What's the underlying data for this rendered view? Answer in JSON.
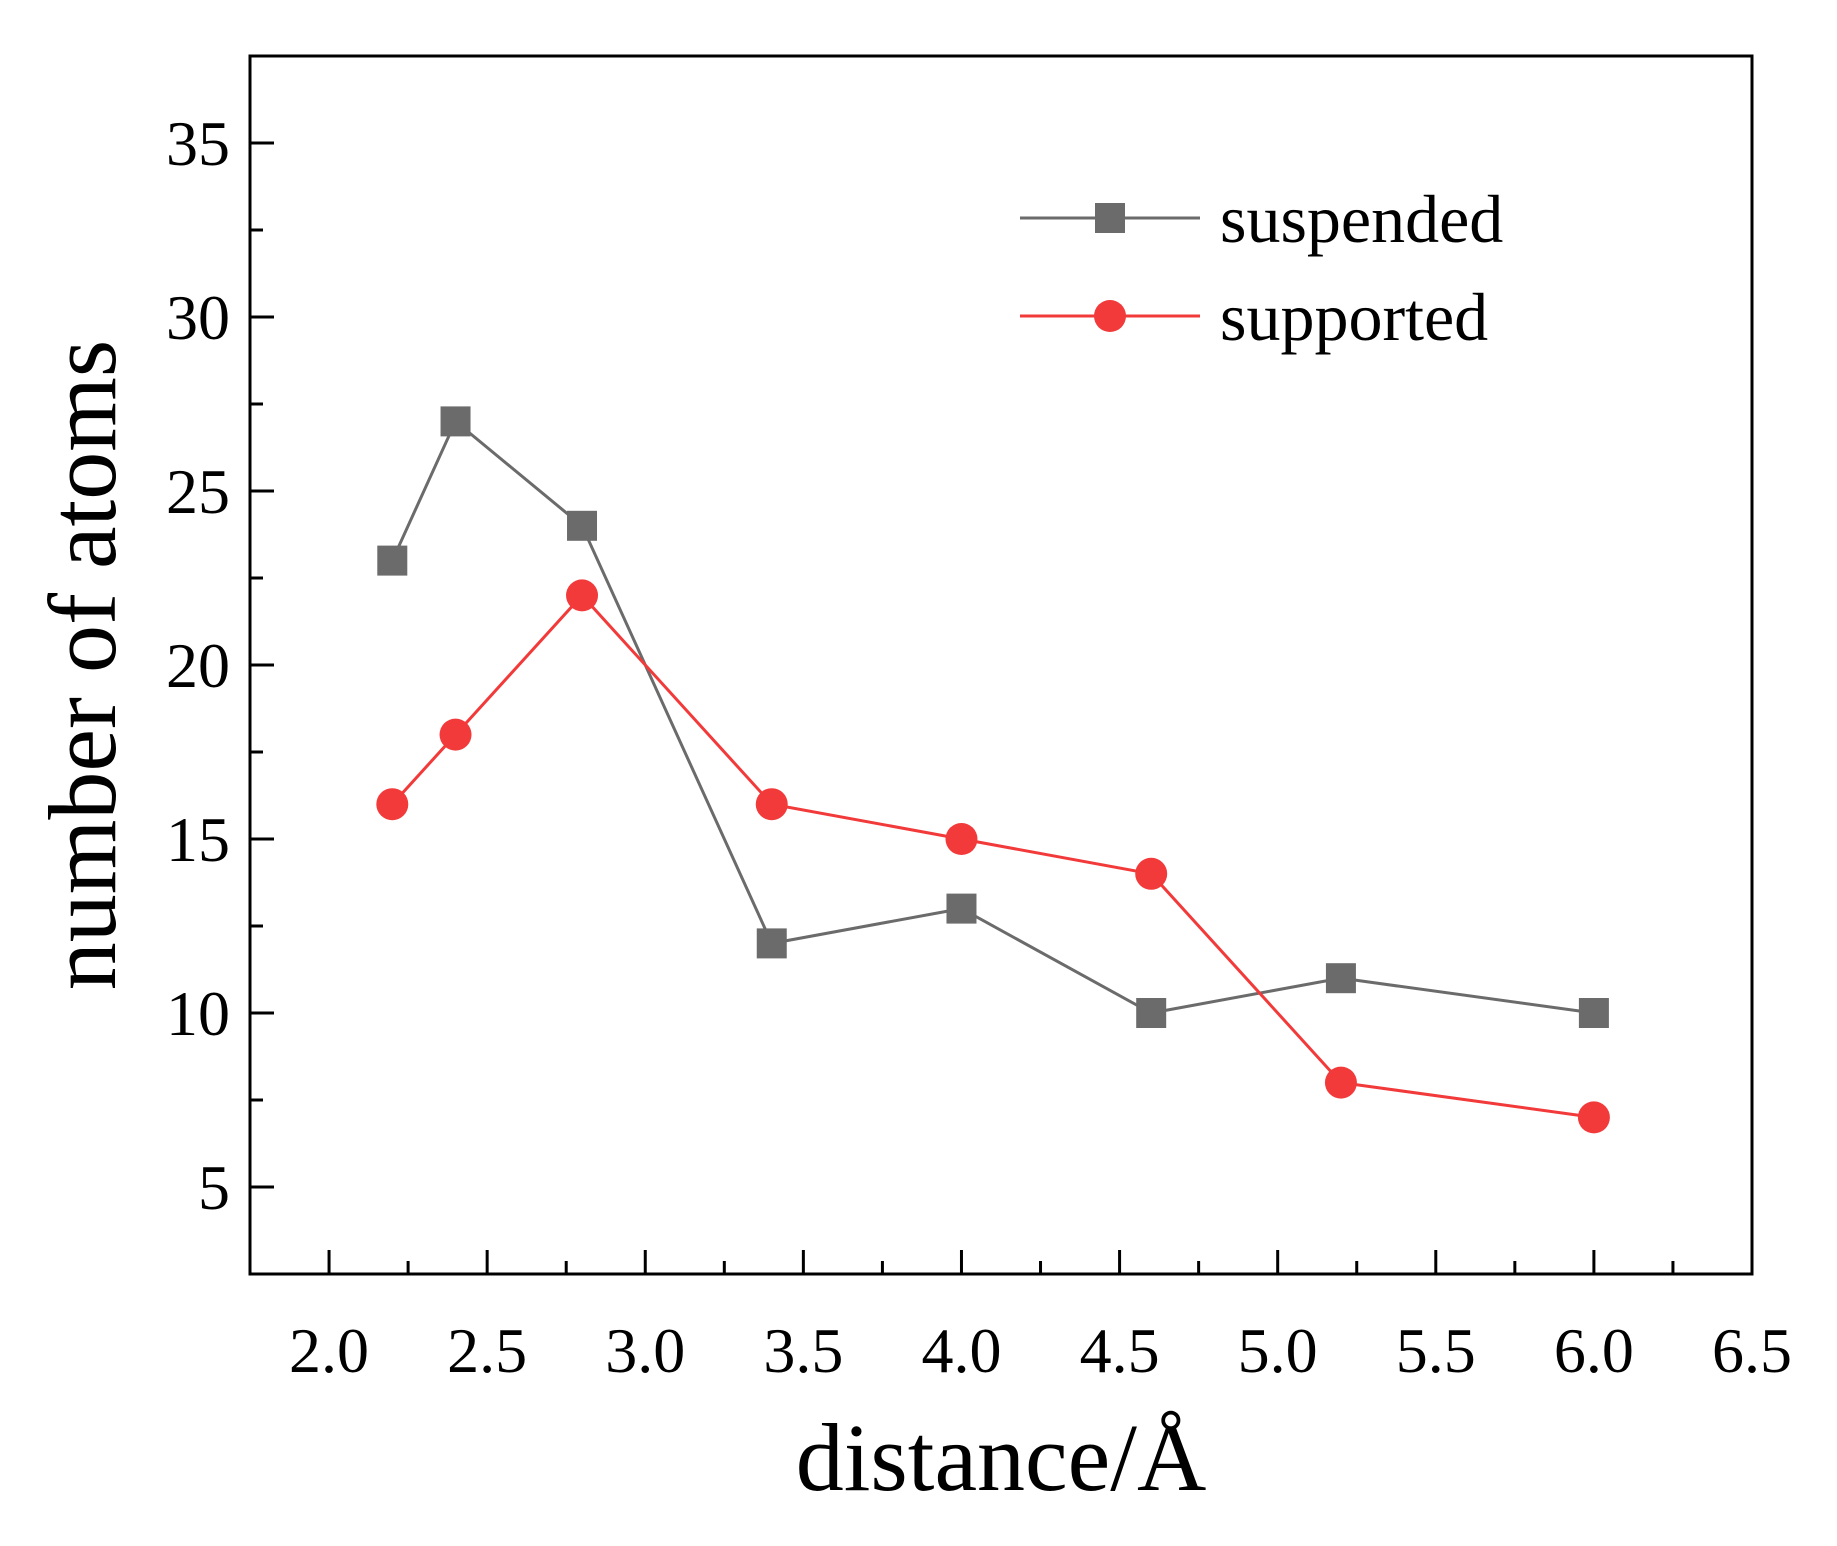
{
  "chart_data": {
    "type": "line",
    "title": "",
    "xlabel": "distance/Å",
    "ylabel": "number of atoms",
    "xlim": [
      1.75,
      6.5
    ],
    "ylim": [
      2.5,
      37.5
    ],
    "xticks": [
      2.0,
      2.5,
      3.0,
      3.5,
      4.0,
      4.5,
      5.0,
      5.5,
      6.0,
      6.5
    ],
    "xtick_labels": [
      "2.0",
      "2.5",
      "3.0",
      "3.5",
      "4.0",
      "4.5",
      "5.0",
      "5.5",
      "6.0",
      "6.5"
    ],
    "yticks": [
      5,
      10,
      15,
      20,
      25,
      30,
      35
    ],
    "ytick_labels": [
      "5",
      "10",
      "15",
      "20",
      "25",
      "30",
      "35"
    ],
    "grid": false,
    "legend_position": "top-right",
    "series": [
      {
        "name": "suspended",
        "color": "#6b6b6b",
        "marker": "square",
        "x": [
          2.2,
          2.4,
          2.8,
          3.4,
          4.0,
          4.6,
          5.2,
          6.0
        ],
        "values": [
          23,
          27,
          24,
          12,
          13,
          10,
          11,
          10
        ]
      },
      {
        "name": "supported",
        "color": "#f23a3a",
        "marker": "circle",
        "x": [
          2.2,
          2.4,
          2.8,
          3.4,
          4.0,
          4.6,
          5.2,
          6.0
        ],
        "values": [
          16,
          18,
          22,
          16,
          15,
          14,
          8,
          7
        ]
      }
    ]
  }
}
